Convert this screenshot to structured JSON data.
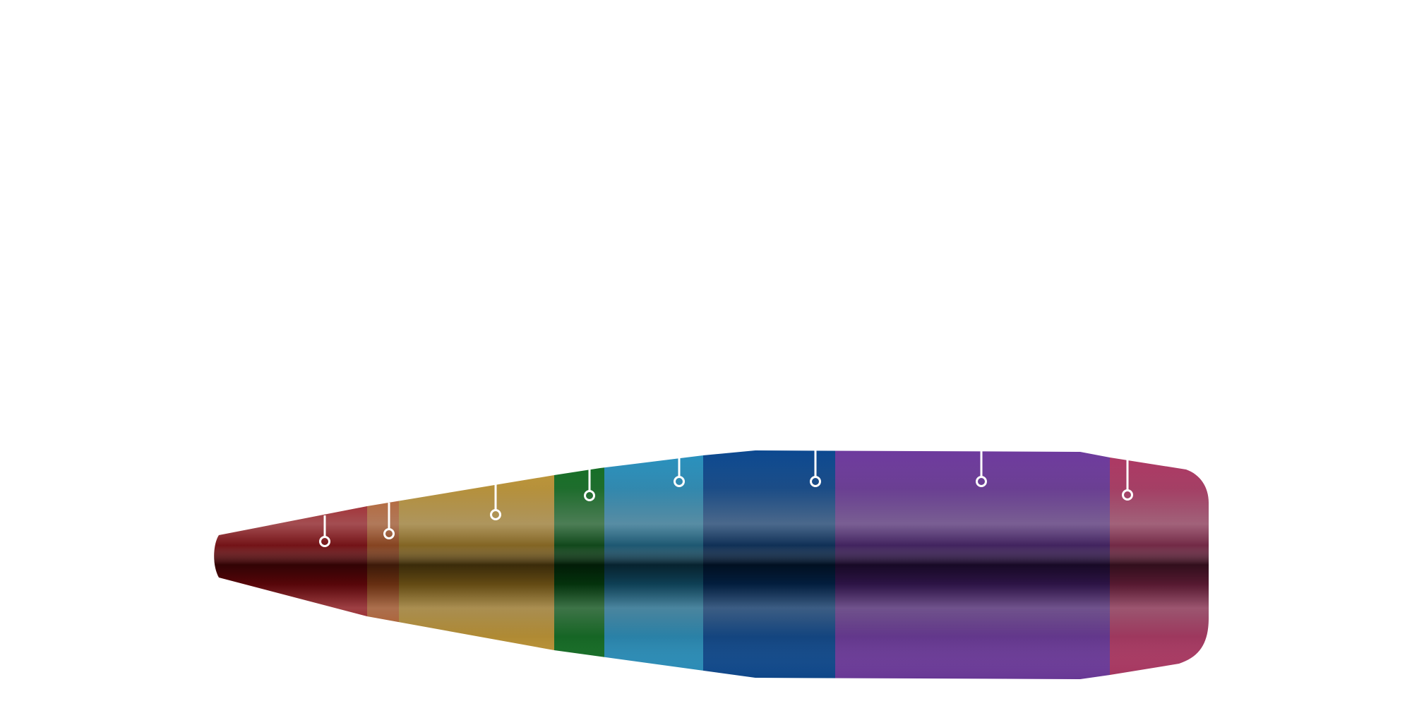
{
  "diagram": {
    "subject": "bullet",
    "sections": [
      {
        "id": "tip",
        "color": "#c8101a",
        "shade": "#5a0508",
        "marker": true
      },
      {
        "id": "tip-transition",
        "color": "#d9712f",
        "shade": "#6e2f10",
        "marker": true
      },
      {
        "id": "ogive",
        "color": "#d7a838",
        "shade": "#6a4e12",
        "marker": true
      },
      {
        "id": "ogive-ring",
        "color": "#0e7a22",
        "shade": "#03330c",
        "marker": true
      },
      {
        "id": "forward-ogive",
        "color": "#2aa2d6",
        "shade": "#0d3f55",
        "marker": true
      },
      {
        "id": "shoulder",
        "color": "#0a4fa0",
        "shade": "#021d3d",
        "marker": true
      },
      {
        "id": "bearing-surface",
        "color": "#7a3fb0",
        "shade": "#2b1145",
        "marker": true
      },
      {
        "id": "boat-tail",
        "color": "#c23a6c",
        "shade": "#5a1a33",
        "marker": true
      }
    ],
    "marker_color": "#ffffff"
  }
}
